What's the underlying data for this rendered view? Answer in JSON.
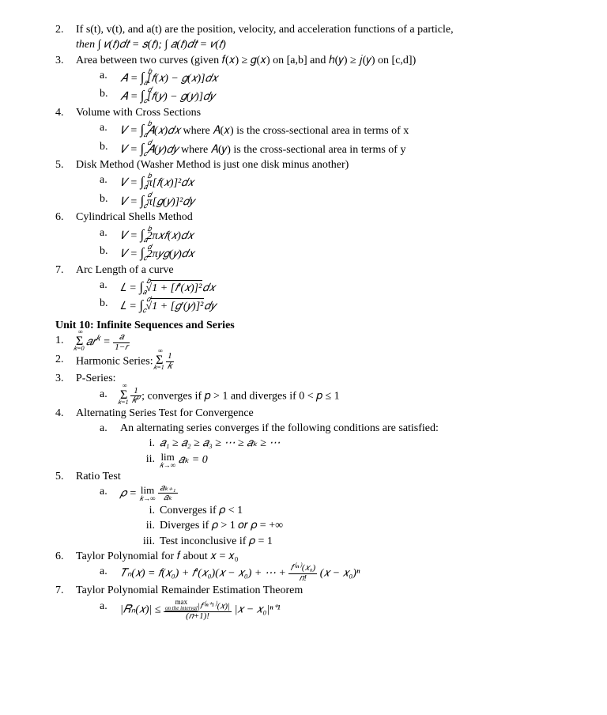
{
  "items": {
    "n2": "2.",
    "t2a": "If s(t), v(t), and a(t) are the position, velocity, and acceleration functions of a particle,",
    "t2b": "then ∫ 𝑣(𝑡)𝑑𝑡 = 𝑠(𝑡);  ∫ 𝑎(𝑡)𝑑𝑡 = 𝑣(𝑡)",
    "n3": "3.",
    "t3": "Area between two curves (given 𝑓(𝑥) ≥ 𝑔(𝑥) on [a,b] and ℎ(𝑦) ≥ 𝑗(𝑦) on [c,d])",
    "t3a_l": "a.",
    "t3a": "𝐴 = ",
    "t3a_int_lo": "𝑎",
    "t3a_int_hi": "𝑏",
    "t3a_rest": "[𝑓(𝑥) − 𝑔(𝑥)]𝑑𝑥",
    "t3b_l": "b.",
    "t3b": "𝐴 = ",
    "t3b_int_lo": "𝑐",
    "t3b_int_hi": "𝑑",
    "t3b_rest": "[𝑓(𝑦) − 𝑔(𝑦)]𝑑𝑦",
    "n4": "4.",
    "t4": "Volume with Cross Sections",
    "t4a_l": "a.",
    "t4a": "𝑉 = ",
    "t4a_lo": "𝑎",
    "t4a_hi": "𝑏",
    "t4a_mid": " 𝐴(𝑥)𝑑𝑥",
    "t4a_end": " where 𝐴(𝑥) is the cross-sectional area in terms of x",
    "t4b_l": "b.",
    "t4b": "𝑉 = ",
    "t4b_lo": "𝑐",
    "t4b_hi": "𝑑",
    "t4b_mid": " 𝐴(𝑦)𝑑𝑦",
    "t4b_end": " where 𝐴(𝑦) is the cross-sectional area in terms of y",
    "n5": "5.",
    "t5": "Disk Method (Washer Method is just one disk minus another)",
    "t5a_l": "a.",
    "t5a": "𝑉 = ",
    "t5a_lo": "𝑎",
    "t5a_hi": "𝑏",
    "t5a_rest": " π[𝑓(𝑥)]²𝑑𝑥",
    "t5b_l": "b.",
    "t5b": "𝑉 = ",
    "t5b_lo": "𝑐",
    "t5b_hi": "𝑑",
    "t5b_rest": " π[𝑔(𝑦)]²𝑑𝑦",
    "n6": "6.",
    "t6": "Cylindrical Shells Method",
    "t6a_l": "a.",
    "t6a": "𝑉 = ",
    "t6a_lo": "𝑎",
    "t6a_hi": "𝑏",
    "t6a_rest": " 2π𝑥𝑓(𝑥)𝑑𝑥",
    "t6b_l": "b.",
    "t6b": "𝑉 = ",
    "t6b_lo": "𝑐",
    "t6b_hi": "𝑑",
    "t6b_rest": " 2π𝑦𝑔(𝑦)𝑑𝑥",
    "n7": "7.",
    "t7": "Arc Length of a curve",
    "t7a_l": "a.",
    "t7a": "𝐿 = ",
    "t7a_lo": "𝑎",
    "t7a_hi": "𝑏",
    "t7a_sq": "1 + [𝑓′(𝑥)]²",
    "t7a_end": "𝑑𝑥",
    "t7b_l": "b.",
    "t7b": "𝐿 = ",
    "t7b_lo": "𝑐",
    "t7b_hi": "𝑑",
    "t7b_sq": "1 + [𝑔′(𝑦)]²",
    "t7b_end": "𝑑𝑦",
    "unit": "Unit 10: Infinite Sequences and Series",
    "u1": "1.",
    "u1_sum_lo": "𝑘=0",
    "u1_sum_hi": "∞",
    "u1_body": " 𝑎𝑟",
    "u1_k": "𝑘",
    "u1_eq": " = ",
    "u1_ft": "𝑎",
    "u1_fb": "1−𝑟",
    "u2": "2.",
    "u2t": "Harmonic Series: ",
    "u2_lo": "𝑘=1",
    "u2_hi": "∞",
    "u2_ft": "1",
    "u2_fb": "𝑘",
    "u3": "3.",
    "u3t": "P-Series:",
    "u3a_l": "a.",
    "u3a_lo": "𝑘=1",
    "u3a_hi": "∞",
    "u3a_ft": "1",
    "u3a_fb": "𝑘𝑝",
    "u3a_end": "; converges if 𝑝 > 1 and diverges if 0 < 𝑝 ≤ 1",
    "u4": "4.",
    "u4t": "Alternating Series Test for Convergence",
    "u4a_l": "a.",
    "u4a": "An alternating series converges if the following conditions are satisfied:",
    "u4i_l": "i.",
    "u4i": "𝑎₁ ≥ 𝑎₂ ≥ 𝑎₃ ≥ ⋯ ≥ 𝑎ₖ ≥ ⋯",
    "u4ii_l": "ii.",
    "u4ii_lt": "lim",
    "u4ii_lb": "𝑘→∞",
    "u4ii_r": " 𝑎ₖ = 0",
    "u5": "5.",
    "u5t": "Ratio Test",
    "u5a_l": "a.",
    "u5a": "𝜌 = ",
    "u5a_lt": "lim",
    "u5a_lb": "𝑘→∞",
    "u5a_ft": "𝑎ₖ₊₁",
    "u5a_fb": "𝑎ₖ",
    "u5i_l": "i.",
    "u5i": "Converges if 𝜌 < 1",
    "u5ii_l": "ii.",
    "u5ii": "Diverges if 𝜌 > 1 𝑜𝑟 𝜌 = +∞",
    "u5iii_l": "iii.",
    "u5iii": "Test inconclusive if 𝜌 = 1",
    "u6": "6.",
    "u6t": "Taylor Polynomial for 𝑓 about 𝑥 = 𝑥₀",
    "u6a_l": "a.",
    "u6a": "𝑇ₙ(𝑥) = 𝑓(𝑥₀) + 𝑓′(𝑥₀)(𝑥 − 𝑥₀) + ⋯ + ",
    "u6a_ft": "𝑓⁽ⁿ⁾(𝑥₀)",
    "u6a_fb": "𝑛!",
    "u6a_end": " (𝑥 − 𝑥₀)ⁿ",
    "u7": "7.",
    "u7t": "Taylor Polynomial Remainder Estimation Theorem",
    "u7a_l": "a.",
    "u7a": "|𝑅ₙ(𝑥)| ≤ ",
    "u7a_ft1": "max",
    "u7a_ft2": "on the interval",
    "u7a_ft3": "|𝑓⁽ⁿ⁺¹⁾(𝑥)|",
    "u7a_fb": "(𝑛+1)!",
    "u7a_end": " |𝑥 − 𝑥₀|ⁿ⁺¹"
  }
}
